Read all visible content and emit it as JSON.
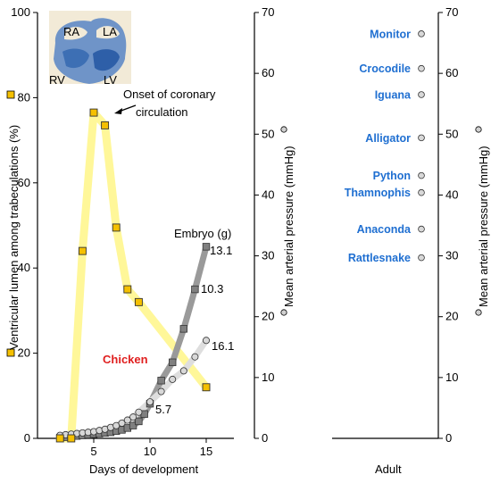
{
  "chart_data": {
    "type": "line",
    "xlabel": "Days of development",
    "ylabel_left": "Ventricular lumen among trabeculations (%)",
    "ylabel_right": "Mean arterial pressure (mmHg)",
    "ylabel_adult_right": "Mean arterial pressure (mmHg)",
    "xlim": [
      0,
      20
    ],
    "ylim_left": [
      0,
      100
    ],
    "ylim_right": [
      0,
      70
    ],
    "x_ticks": [
      "5",
      "10",
      "15"
    ],
    "y_ticks_left": [
      "0",
      "20",
      "40",
      "60",
      "80",
      "100"
    ],
    "y_ticks_right": [
      "0",
      "10",
      "20",
      "30",
      "40",
      "50",
      "60",
      "70"
    ],
    "grid": false,
    "series": [
      {
        "name": "",
        "color": "#e8a800",
        "band_color": "#fff799",
        "marker": "square",
        "axis": "left",
        "points": [
          [
            2,
            0
          ],
          [
            3,
            0
          ],
          [
            4,
            44
          ],
          [
            5,
            76.5
          ],
          [
            6,
            73.5
          ],
          [
            7,
            49.5
          ],
          [
            8,
            35
          ],
          [
            9,
            32
          ],
          [
            15,
            12
          ]
        ]
      },
      {
        "name": "Embryo (g)",
        "color": "#808080",
        "marker": "square",
        "axis": "right",
        "points": [
          [
            2,
            0.1
          ],
          [
            2.5,
            0.2
          ],
          [
            3,
            0.3
          ],
          [
            3.5,
            0.4
          ],
          [
            4,
            0.5
          ],
          [
            4.5,
            0.6
          ],
          [
            5,
            0.7
          ],
          [
            5.5,
            0.8
          ],
          [
            6,
            0.9
          ],
          [
            6.5,
            1.0
          ],
          [
            7,
            1.2
          ],
          [
            7.5,
            1.4
          ],
          [
            8,
            1.7
          ],
          [
            8.5,
            2.1
          ],
          [
            9,
            2.8
          ],
          [
            9.5,
            4.0
          ],
          [
            10,
            5.7
          ],
          [
            11,
            9.5
          ],
          [
            12,
            12.5
          ],
          [
            13,
            18.0
          ],
          [
            14,
            24.5
          ],
          [
            15,
            31.5
          ]
        ]
      },
      {
        "name": "",
        "color": "#bfbfbf",
        "marker": "circle",
        "axis": "right",
        "points": [
          [
            2,
            0.5
          ],
          [
            2.5,
            0.6
          ],
          [
            3,
            0.7
          ],
          [
            3.5,
            0.8
          ],
          [
            4,
            0.9
          ],
          [
            4.5,
            1.0
          ],
          [
            5,
            1.1
          ],
          [
            5.5,
            1.3
          ],
          [
            6,
            1.5
          ],
          [
            6.5,
            1.8
          ],
          [
            7,
            2.1
          ],
          [
            7.5,
            2.5
          ],
          [
            8,
            3.0
          ],
          [
            8.5,
            3.5
          ],
          [
            9,
            4.3
          ],
          [
            10,
            6.0
          ],
          [
            11,
            7.7
          ],
          [
            12,
            9.7
          ],
          [
            13,
            11.1
          ],
          [
            14,
            13.4
          ],
          [
            15,
            16.1
          ]
        ]
      }
    ],
    "annotations": [
      "Onset of coronary circulation",
      "Embryo (g)",
      "13.1",
      "10.3",
      "16.1",
      "5.7",
      "Chicken"
    ],
    "inset_labels": [
      "RA",
      "LA",
      "RV",
      "LV"
    ],
    "adult": {
      "xlabel": "Adult",
      "species": [
        {
          "name": "Monitor",
          "pressure": 66.5
        },
        {
          "name": "Crocodile",
          "pressure": 60.8
        },
        {
          "name": "Iguana",
          "pressure": 56.5
        },
        {
          "name": "Alligator",
          "pressure": 49.4
        },
        {
          "name": "Python",
          "pressure": 43.2
        },
        {
          "name": "Thamnophis",
          "pressure": 40.4
        },
        {
          "name": "Anaconda",
          "pressure": 34.4
        },
        {
          "name": "Rattlesnake",
          "pressure": 29.7
        }
      ]
    },
    "colors": {
      "species_text": "#1f6fd1",
      "chicken_text": "#e02020",
      "marker_fill_yellow": "#f5c000"
    }
  }
}
